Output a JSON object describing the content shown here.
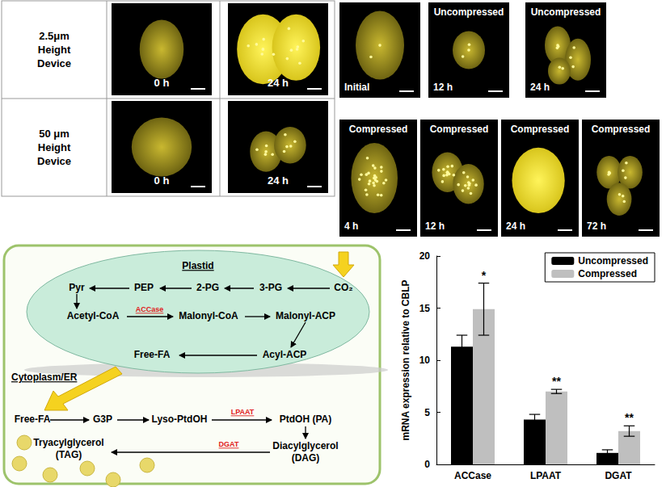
{
  "micrographs_left": {
    "rows": [
      {
        "label": [
          "2.5μm",
          "Height",
          "Device"
        ],
        "panels": [
          "0 h",
          "24 h"
        ]
      },
      {
        "label": [
          "50 μm",
          "Height",
          "Device"
        ],
        "panels": [
          "0 h",
          "24 h"
        ]
      }
    ]
  },
  "micrographs_right": {
    "rows": [
      [
        {
          "time": "Initial"
        },
        {
          "condition": "Uncompressed",
          "time": "12 h"
        },
        {
          "condition": "Uncompressed",
          "time": "24 h"
        }
      ],
      [
        {
          "condition": "Compressed",
          "time": "4 h"
        },
        {
          "condition": "Compressed",
          "time": "12 h"
        },
        {
          "condition": "Compressed",
          "time": "24 h"
        },
        {
          "condition": "Compressed",
          "time": "72 h"
        }
      ]
    ]
  },
  "pathway": {
    "compartments": [
      "Plastid",
      "Cytoplasm/ER"
    ],
    "nodes": [
      [
        "CO₂"
      ],
      [
        "3-PG"
      ],
      [
        "2-PG"
      ],
      [
        "PEP"
      ],
      [
        "Pyr"
      ],
      [
        "Acetyl-CoA"
      ],
      [
        "Malonyl-CoA"
      ],
      [
        "Malonyl-ACP"
      ],
      [
        "Acyl-ACP"
      ],
      [
        "Free-FA"
      ],
      [
        "Free-FA"
      ],
      [
        "G3P"
      ],
      [
        "Lyso-PtdOH"
      ],
      [
        "PtdOH (PA)"
      ],
      [
        "Diacylglycerol",
        "(DAG)"
      ],
      [
        "Tryacylglycerol",
        "(TAG)"
      ]
    ],
    "enzymes": [
      "ACCase",
      "LPAAT",
      "DGAT"
    ]
  },
  "chart_data": {
    "type": "bar",
    "categories": [
      "ACCase",
      "LPAAT",
      "DGAT"
    ],
    "y_label": "mRNA expression relative to CBLP",
    "ylim": [
      0,
      20
    ],
    "yticks": [
      0,
      5,
      10,
      15,
      20
    ],
    "grid": false,
    "legend": "upper right",
    "series": [
      {
        "name": "Uncompressed",
        "color": "#000000",
        "values": [
          11.3,
          4.3,
          1.1
        ],
        "errors": [
          1.1,
          0.5,
          0.3
        ]
      },
      {
        "name": "Compressed",
        "color": "#bfbfbf",
        "values": [
          14.9,
          7.0,
          3.2
        ],
        "errors": [
          2.5,
          0.2,
          0.5
        ],
        "significance": [
          "*",
          "**",
          "**"
        ]
      }
    ]
  }
}
